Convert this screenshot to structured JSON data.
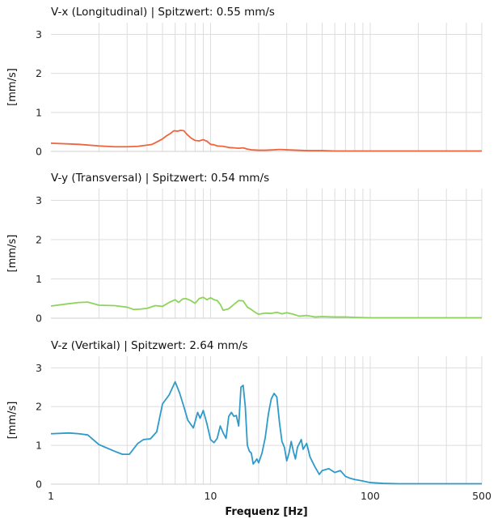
{
  "chart_data": [
    {
      "type": "line",
      "title": "V-x (Longitudinal) | Spitzwert: 0.55 mm/s",
      "ylabel": "[mm/s]",
      "xlabel": "",
      "xscale": "log",
      "xlim": [
        1,
        500
      ],
      "ylim": [
        0,
        3.3
      ],
      "yticks": [
        "0",
        "1",
        "2",
        "3"
      ],
      "grid": true,
      "color": "#f0643c",
      "series": [
        {
          "x": [
            1,
            1.5,
            2,
            2.5,
            3,
            3.5,
            4,
            4.3,
            4.6,
            5,
            5.3,
            5.6,
            5.9,
            6.2,
            6.5,
            6.8,
            7.1,
            7.5,
            8,
            8.5,
            9,
            9.5,
            10,
            10.5,
            11,
            12,
            13,
            14,
            15,
            16,
            17,
            18,
            20,
            22,
            25,
            27,
            30,
            35,
            40,
            50,
            60,
            70,
            80,
            100,
            150,
            200,
            300,
            400,
            500
          ],
          "y": [
            0.21,
            0.18,
            0.14,
            0.12,
            0.12,
            0.13,
            0.16,
            0.18,
            0.24,
            0.32,
            0.4,
            0.46,
            0.53,
            0.52,
            0.54,
            0.53,
            0.44,
            0.35,
            0.28,
            0.27,
            0.3,
            0.26,
            0.18,
            0.17,
            0.14,
            0.13,
            0.1,
            0.09,
            0.08,
            0.09,
            0.06,
            0.04,
            0.03,
            0.03,
            0.04,
            0.05,
            0.04,
            0.03,
            0.02,
            0.02,
            0.01,
            0.01,
            0.01,
            0.01,
            0.01,
            0.01,
            0.01,
            0.01,
            0.01
          ]
        }
      ]
    },
    {
      "type": "line",
      "title": "V-y (Transversal) | Spitzwert: 0.54 mm/s",
      "ylabel": "[mm/s]",
      "xlabel": "",
      "xscale": "log",
      "xlim": [
        1,
        500
      ],
      "ylim": [
        0,
        3.3
      ],
      "yticks": [
        "0",
        "1",
        "2",
        "3"
      ],
      "grid": true,
      "color": "#8fd45a",
      "series": [
        {
          "x": [
            1,
            1.3,
            1.5,
            1.7,
            2,
            2.5,
            3,
            3.3,
            3.6,
            4,
            4.5,
            5,
            5.5,
            6,
            6.3,
            6.7,
            7,
            7.5,
            8,
            8.5,
            9,
            9.5,
            10,
            10.5,
            11,
            11.5,
            12,
            13,
            14,
            15,
            16,
            17,
            18,
            19,
            20,
            22,
            24,
            26,
            28,
            30,
            33,
            36,
            40,
            45,
            50,
            60,
            70,
            80,
            100,
            150,
            200,
            300,
            400,
            500
          ],
          "y": [
            0.31,
            0.37,
            0.4,
            0.41,
            0.33,
            0.32,
            0.28,
            0.22,
            0.23,
            0.25,
            0.32,
            0.3,
            0.4,
            0.47,
            0.4,
            0.49,
            0.5,
            0.45,
            0.38,
            0.5,
            0.53,
            0.47,
            0.52,
            0.47,
            0.45,
            0.35,
            0.2,
            0.24,
            0.35,
            0.45,
            0.44,
            0.28,
            0.22,
            0.15,
            0.1,
            0.13,
            0.12,
            0.15,
            0.11,
            0.14,
            0.1,
            0.05,
            0.07,
            0.03,
            0.04,
            0.03,
            0.03,
            0.02,
            0.01,
            0.01,
            0.01,
            0.01,
            0.01,
            0.01
          ]
        }
      ]
    },
    {
      "type": "line",
      "title": "V-z (Vertikal) | Spitzwert: 2.64 mm/s",
      "ylabel": "[mm/s]",
      "xlabel": "Frequenz [Hz]",
      "xscale": "log",
      "xlim": [
        1,
        500
      ],
      "ylim": [
        0,
        3.3
      ],
      "yticks": [
        "0",
        "1",
        "2",
        "3"
      ],
      "xticks": [
        "1",
        "10",
        "100",
        "500"
      ],
      "grid": true,
      "color": "#2e9ac9",
      "series": [
        {
          "x": [
            1,
            1.3,
            1.5,
            1.7,
            2,
            2.5,
            2.8,
            3.1,
            3.5,
            3.8,
            4.2,
            4.6,
            5,
            5.5,
            6,
            6.4,
            6.8,
            7.2,
            7.8,
            8.3,
            8.6,
            9,
            9.5,
            10,
            10.5,
            11,
            11.5,
            12,
            12.5,
            13,
            13.5,
            14,
            14.5,
            15,
            15.5,
            16,
            16.5,
            17,
            17.5,
            18,
            18.5,
            19,
            19.5,
            20,
            21,
            22,
            23,
            24,
            25,
            26,
            27,
            28,
            29,
            30,
            31,
            32,
            33,
            34,
            35,
            36,
            37,
            38,
            40,
            42,
            45,
            48,
            50,
            55,
            60,
            65,
            70,
            75,
            80,
            90,
            100,
            120,
            150,
            200,
            300,
            400,
            500
          ],
          "y": [
            1.3,
            1.32,
            1.3,
            1.27,
            1.02,
            0.85,
            0.77,
            0.77,
            1.05,
            1.15,
            1.17,
            1.35,
            2.07,
            2.3,
            2.64,
            2.35,
            2.0,
            1.65,
            1.45,
            1.85,
            1.7,
            1.9,
            1.55,
            1.15,
            1.07,
            1.18,
            1.5,
            1.32,
            1.18,
            1.75,
            1.85,
            1.75,
            1.77,
            1.5,
            2.5,
            2.55,
            2.0,
            1.0,
            0.85,
            0.8,
            0.52,
            0.58,
            0.65,
            0.55,
            0.8,
            1.2,
            1.8,
            2.2,
            2.34,
            2.25,
            1.6,
            1.1,
            0.95,
            0.6,
            0.8,
            1.1,
            0.85,
            0.65,
            0.95,
            1.05,
            1.15,
            0.9,
            1.05,
            0.7,
            0.45,
            0.25,
            0.35,
            0.4,
            0.3,
            0.35,
            0.2,
            0.15,
            0.12,
            0.08,
            0.04,
            0.02,
            0.01,
            0.01,
            0.01,
            0.01,
            0.01
          ]
        }
      ]
    }
  ]
}
